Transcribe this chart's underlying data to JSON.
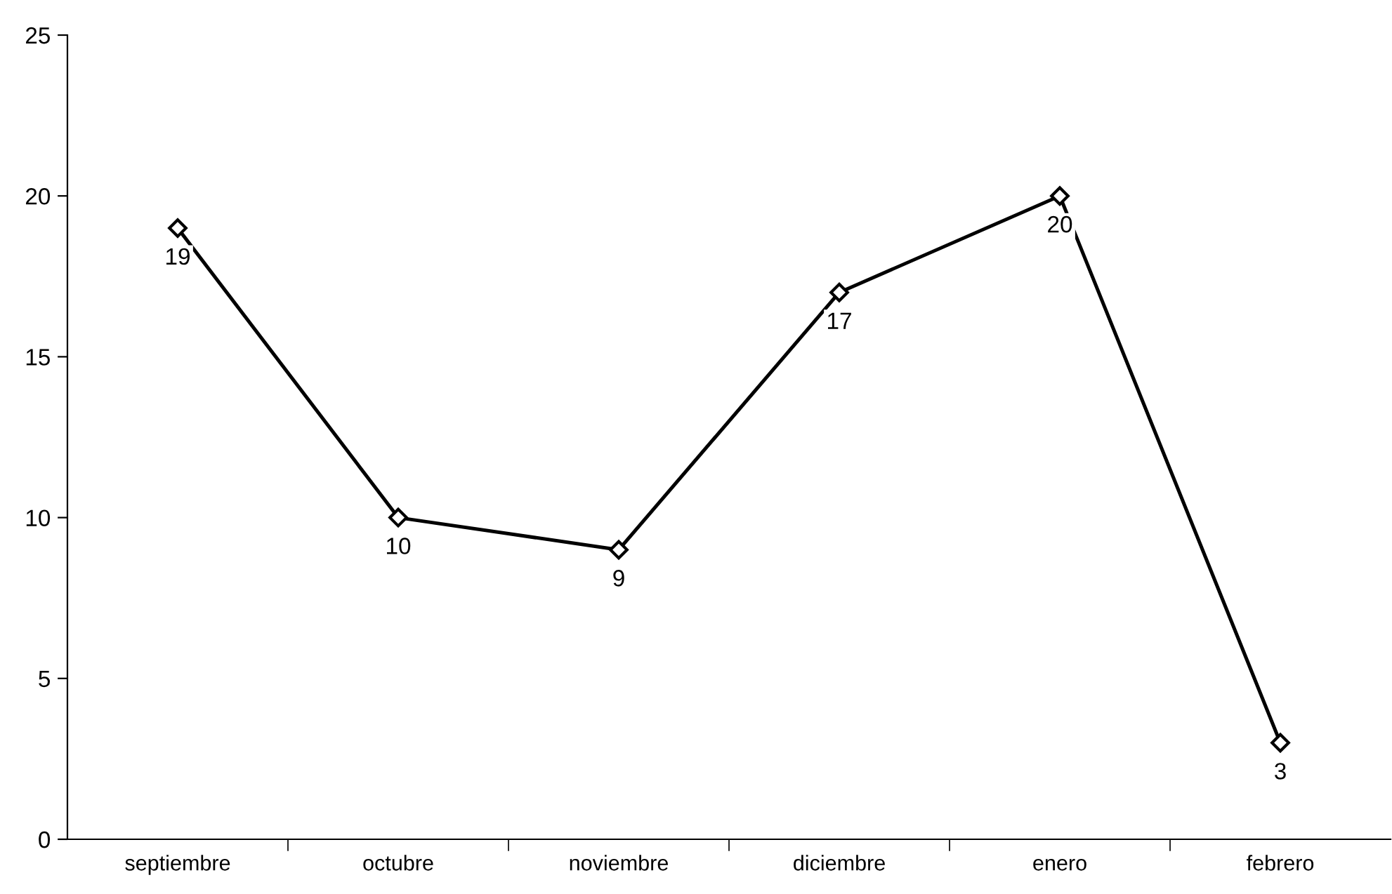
{
  "chart_data": {
    "type": "line",
    "categories": [
      "septiembre",
      "octubre",
      "noviembre",
      "diciembre",
      "enero",
      "febrero"
    ],
    "series": [
      {
        "color": "#000000",
        "values": [
          19,
          10,
          9,
          17,
          20,
          3
        ]
      }
    ],
    "ylim": [
      0,
      25
    ],
    "yticks": [
      0,
      5,
      10,
      15,
      20,
      25
    ],
    "marker": "diamond",
    "line_style": "solid",
    "data_labels": true,
    "grid": false
  }
}
